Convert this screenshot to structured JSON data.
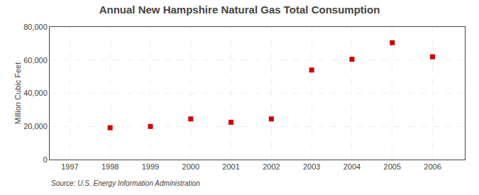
{
  "chart_data": {
    "type": "scatter",
    "title": "Annual New Hampshire Natural Gas Total Consumption",
    "ylabel": "Million Cubic Feet",
    "annotations": [
      "Source: U.S. Energy Information Administration"
    ],
    "x": [
      1998,
      1999,
      2000,
      2001,
      2002,
      2003,
      2004,
      2005,
      2006
    ],
    "values": [
      19200,
      20000,
      24500,
      22500,
      24500,
      54000,
      60500,
      70500,
      62000
    ],
    "color": "#cc0000",
    "marker": "square",
    "xlim": [
      1996.5,
      2006.8
    ],
    "ylim": [
      0,
      80000
    ],
    "xticks": [
      1997,
      1998,
      1999,
      2000,
      2001,
      2002,
      2003,
      2004,
      2005,
      2006
    ],
    "yticks": [
      0,
      {
        "value": 20000,
        "label": "20,000"
      },
      {
        "value": 40000,
        "label": "40,000"
      },
      {
        "value": 60000,
        "label": "60,000"
      },
      {
        "value": 80000,
        "label": "80,000"
      }
    ],
    "grid": true
  }
}
